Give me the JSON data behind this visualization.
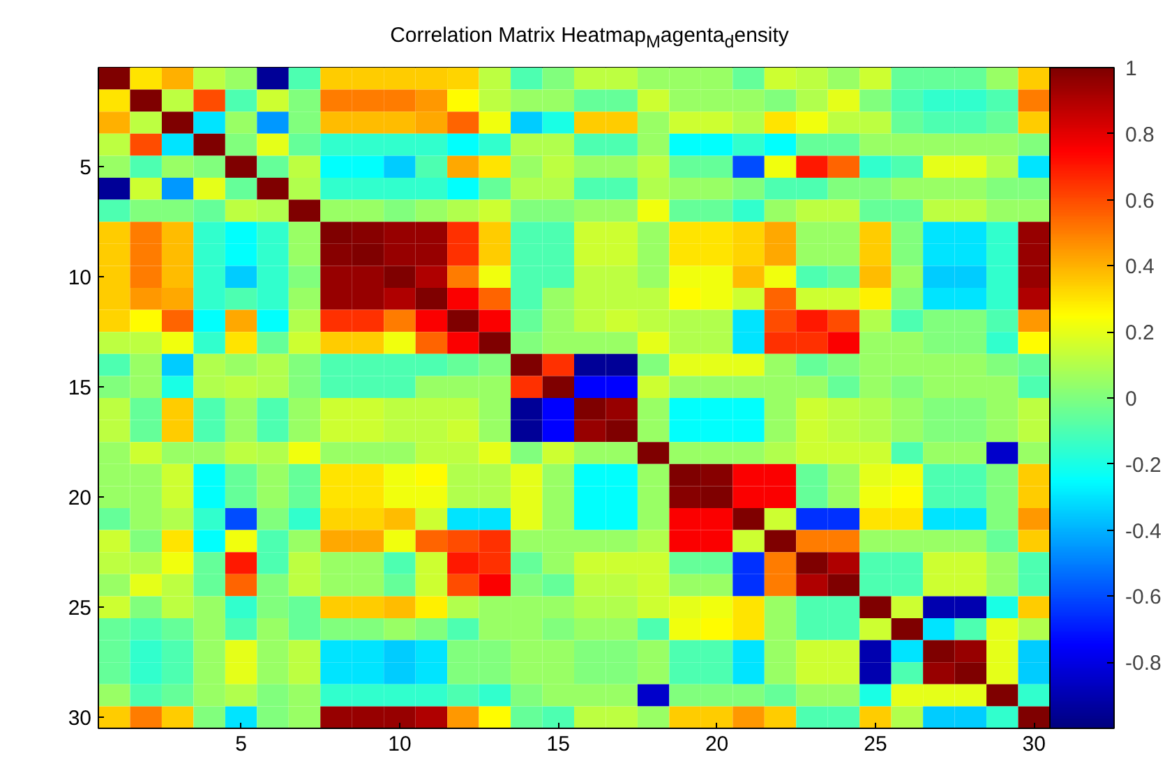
{
  "chart_data": {
    "type": "heatmap",
    "title": "Correlation Matrix Heatmap$_{M}$agenta$_{d}$ensity",
    "categories": [
      null,
      null,
      null,
      null,
      "5",
      null,
      null,
      null,
      null,
      "10",
      null,
      null,
      null,
      null,
      "15",
      null,
      null,
      null,
      null,
      "20",
      null,
      null,
      null,
      null,
      "25",
      null,
      null,
      null,
      null,
      "30"
    ],
    "y_categories": [
      null,
      null,
      null,
      null,
      "5",
      null,
      null,
      null,
      null,
      "10",
      null,
      null,
      null,
      null,
      "15",
      null,
      null,
      null,
      null,
      "20",
      null,
      null,
      null,
      null,
      "25",
      null,
      null,
      null,
      null,
      "30"
    ],
    "clim": [
      -1,
      1
    ],
    "cticks": [
      -0.8,
      -0.6,
      -0.4,
      -0.2,
      0,
      0.2,
      0.4,
      0.6,
      0.8,
      1
    ],
    "cells": [
      [
        1,
        0.3,
        0.4,
        0.12,
        0.05,
        -0.95,
        -0.1,
        0.35,
        0.35,
        0.35,
        0.35,
        0.33,
        0.12,
        -0.1,
        0.0,
        0.12,
        0.12,
        0.05,
        0.05,
        0.05,
        -0.05,
        0.15,
        0.12,
        0.05,
        0.15,
        -0.05,
        -0.05,
        -0.05,
        0.05,
        0.35
      ],
      [
        0.3,
        1,
        0.12,
        0.6,
        -0.1,
        0.15,
        0.0,
        0.5,
        0.5,
        0.5,
        0.45,
        0.25,
        0.12,
        0.05,
        0.05,
        -0.05,
        -0.05,
        0.15,
        0.05,
        0.05,
        0.05,
        0.0,
        0.1,
        0.2,
        0.0,
        -0.1,
        -0.15,
        -0.15,
        -0.1,
        0.5
      ],
      [
        0.4,
        0.12,
        1,
        -0.3,
        0.05,
        -0.45,
        0.0,
        0.38,
        0.38,
        0.38,
        0.42,
        0.55,
        0.22,
        -0.35,
        -0.2,
        0.35,
        0.35,
        0.05,
        0.15,
        0.15,
        0.1,
        0.3,
        0.22,
        0.12,
        0.12,
        -0.05,
        -0.1,
        -0.1,
        -0.05,
        0.35
      ],
      [
        0.12,
        0.6,
        -0.3,
        1,
        0.0,
        0.2,
        -0.05,
        -0.15,
        -0.15,
        -0.15,
        -0.15,
        -0.25,
        -0.15,
        0.1,
        0.1,
        -0.1,
        -0.1,
        0.05,
        -0.25,
        -0.25,
        -0.15,
        -0.25,
        -0.05,
        -0.05,
        0.05,
        0.05,
        0.05,
        0.05,
        0.05,
        0.0
      ],
      [
        0.05,
        -0.1,
        0.05,
        0.0,
        1,
        -0.05,
        0.12,
        -0.25,
        -0.25,
        -0.35,
        -0.1,
        0.42,
        0.3,
        0.05,
        0.12,
        0.05,
        0.05,
        0.12,
        -0.05,
        -0.05,
        -0.6,
        0.22,
        0.7,
        0.55,
        -0.15,
        -0.1,
        0.2,
        0.2,
        0.1,
        -0.3
      ],
      [
        -0.95,
        0.15,
        -0.45,
        0.2,
        -0.05,
        1,
        0.1,
        -0.15,
        -0.15,
        -0.15,
        -0.15,
        -0.25,
        -0.05,
        0.1,
        0.1,
        -0.1,
        -0.1,
        0.1,
        0.05,
        0.05,
        0.0,
        -0.1,
        -0.1,
        0.0,
        0.0,
        0.05,
        0.05,
        0.05,
        0.0,
        0.0
      ],
      [
        -0.1,
        0.0,
        0.0,
        -0.05,
        0.12,
        0.1,
        1,
        0.05,
        0.05,
        0.0,
        0.05,
        0.1,
        0.15,
        0.0,
        0.0,
        0.05,
        0.05,
        0.22,
        -0.05,
        -0.05,
        -0.15,
        0.05,
        0.12,
        0.12,
        -0.05,
        -0.05,
        0.12,
        0.12,
        0.05,
        0.05
      ],
      [
        0.35,
        0.5,
        0.38,
        -0.15,
        -0.25,
        -0.15,
        0.05,
        1,
        0.98,
        0.95,
        0.95,
        0.65,
        0.35,
        -0.1,
        -0.1,
        0.15,
        0.15,
        0.05,
        0.3,
        0.3,
        0.33,
        0.42,
        0.05,
        0.05,
        0.35,
        0.0,
        -0.3,
        -0.3,
        -0.15,
        0.95
      ],
      [
        0.35,
        0.5,
        0.38,
        -0.15,
        -0.25,
        -0.15,
        0.05,
        0.98,
        1,
        0.95,
        0.95,
        0.65,
        0.35,
        -0.1,
        -0.1,
        0.15,
        0.15,
        0.05,
        0.3,
        0.3,
        0.33,
        0.42,
        0.05,
        0.05,
        0.35,
        0.0,
        -0.3,
        -0.3,
        -0.15,
        0.95
      ],
      [
        0.35,
        0.5,
        0.38,
        -0.15,
        -0.35,
        -0.15,
        0.0,
        0.95,
        0.95,
        1,
        0.9,
        0.5,
        0.22,
        -0.1,
        -0.1,
        0.12,
        0.12,
        0.05,
        0.22,
        0.22,
        0.38,
        0.22,
        -0.1,
        -0.05,
        0.38,
        0.05,
        -0.35,
        -0.35,
        -0.15,
        0.95
      ],
      [
        0.35,
        0.45,
        0.42,
        -0.15,
        -0.1,
        -0.15,
        0.05,
        0.95,
        0.95,
        0.9,
        1,
        0.75,
        0.55,
        -0.1,
        0.05,
        0.12,
        0.12,
        0.12,
        0.25,
        0.22,
        0.15,
        0.55,
        0.15,
        0.15,
        0.28,
        0.0,
        -0.3,
        -0.3,
        -0.15,
        0.9
      ],
      [
        0.33,
        0.25,
        0.55,
        -0.25,
        0.42,
        -0.25,
        0.1,
        0.65,
        0.65,
        0.5,
        0.75,
        1,
        0.75,
        -0.05,
        0.05,
        0.12,
        0.15,
        0.12,
        0.1,
        0.1,
        -0.3,
        0.6,
        0.7,
        0.6,
        0.1,
        -0.1,
        0.0,
        0.0,
        -0.1,
        0.45
      ],
      [
        0.12,
        0.12,
        0.22,
        -0.15,
        0.3,
        -0.05,
        0.15,
        0.35,
        0.35,
        0.22,
        0.55,
        0.75,
        1,
        0.0,
        0.05,
        0.05,
        0.05,
        0.2,
        0.1,
        0.1,
        -0.3,
        0.65,
        0.65,
        0.75,
        0.05,
        0.05,
        0.0,
        0.0,
        -0.15,
        0.25
      ],
      [
        -0.1,
        0.05,
        -0.35,
        0.1,
        0.05,
        0.1,
        0.0,
        -0.1,
        -0.1,
        -0.1,
        -0.1,
        -0.05,
        0.0,
        1,
        0.65,
        -0.95,
        -0.95,
        0.0,
        0.2,
        0.2,
        0.2,
        0.05,
        -0.05,
        0.0,
        0.05,
        0.05,
        0.05,
        0.05,
        0.0,
        -0.05
      ],
      [
        0.0,
        0.05,
        -0.2,
        0.1,
        0.12,
        0.1,
        0.0,
        -0.1,
        -0.1,
        -0.1,
        0.05,
        0.05,
        0.05,
        0.65,
        1,
        -0.75,
        -0.75,
        0.15,
        0.05,
        0.05,
        0.05,
        0.05,
        0.05,
        -0.05,
        0.05,
        0.0,
        0.05,
        0.05,
        0.05,
        -0.1
      ],
      [
        0.12,
        -0.05,
        0.35,
        -0.1,
        0.05,
        -0.1,
        0.05,
        0.15,
        0.15,
        0.12,
        0.12,
        0.12,
        0.05,
        -0.95,
        -0.75,
        1,
        0.95,
        0.05,
        -0.25,
        -0.25,
        -0.25,
        0.05,
        0.15,
        0.12,
        0.1,
        0.05,
        0.0,
        0.0,
        0.05,
        0.12
      ],
      [
        0.12,
        -0.05,
        0.35,
        -0.1,
        0.05,
        -0.1,
        0.05,
        0.15,
        0.15,
        0.12,
        0.12,
        0.15,
        0.05,
        -0.95,
        -0.75,
        0.95,
        1,
        0.05,
        -0.25,
        -0.25,
        -0.25,
        0.05,
        0.15,
        0.12,
        0.1,
        0.05,
        0.0,
        0.0,
        0.05,
        0.12
      ],
      [
        0.05,
        0.15,
        0.05,
        0.05,
        0.12,
        0.1,
        0.22,
        0.05,
        0.05,
        0.05,
        0.12,
        0.12,
        0.2,
        0.0,
        0.15,
        0.05,
        0.05,
        1,
        0.05,
        0.05,
        0.05,
        0.1,
        0.15,
        0.15,
        0.15,
        -0.1,
        0.05,
        0.05,
        -0.85,
        0.05
      ],
      [
        0.05,
        0.05,
        0.15,
        -0.25,
        -0.05,
        0.05,
        -0.05,
        0.3,
        0.3,
        0.22,
        0.25,
        0.1,
        0.1,
        0.2,
        0.05,
        -0.25,
        -0.25,
        0.05,
        1,
        0.98,
        0.75,
        0.75,
        -0.05,
        0.05,
        0.2,
        0.22,
        -0.1,
        -0.1,
        0.0,
        0.35
      ],
      [
        0.05,
        0.05,
        0.15,
        -0.25,
        -0.05,
        0.05,
        -0.05,
        0.3,
        0.3,
        0.22,
        0.22,
        0.1,
        0.1,
        0.2,
        0.05,
        -0.25,
        -0.25,
        0.05,
        0.98,
        1,
        0.75,
        0.75,
        -0.05,
        0.05,
        0.22,
        0.25,
        -0.1,
        -0.1,
        0.0,
        0.35
      ],
      [
        -0.05,
        0.05,
        0.1,
        -0.15,
        -0.6,
        0.0,
        -0.15,
        0.33,
        0.33,
        0.38,
        0.15,
        -0.3,
        -0.3,
        0.2,
        0.05,
        -0.25,
        -0.25,
        0.05,
        0.75,
        0.75,
        1,
        0.15,
        -0.65,
        -0.65,
        0.3,
        0.3,
        -0.3,
        -0.3,
        0.0,
        0.45
      ],
      [
        0.15,
        0.0,
        0.3,
        -0.25,
        0.22,
        -0.1,
        0.05,
        0.42,
        0.42,
        0.22,
        0.55,
        0.6,
        0.65,
        0.05,
        0.05,
        0.05,
        0.05,
        0.1,
        0.75,
        0.75,
        0.15,
        1,
        0.5,
        0.5,
        0.05,
        0.05,
        0.05,
        0.05,
        -0.05,
        0.35
      ],
      [
        0.12,
        0.1,
        0.22,
        -0.05,
        0.7,
        -0.1,
        0.12,
        0.05,
        0.05,
        -0.1,
        0.15,
        0.7,
        0.65,
        -0.05,
        0.05,
        0.15,
        0.15,
        0.15,
        -0.05,
        -0.05,
        -0.65,
        0.5,
        1,
        0.9,
        -0.1,
        -0.1,
        0.15,
        0.15,
        0.05,
        -0.1
      ],
      [
        0.05,
        0.2,
        0.12,
        -0.05,
        0.55,
        0.0,
        0.12,
        0.05,
        0.05,
        -0.05,
        0.15,
        0.6,
        0.75,
        0.0,
        -0.05,
        0.12,
        0.12,
        0.15,
        0.05,
        0.05,
        -0.65,
        0.5,
        0.9,
        1,
        -0.1,
        -0.1,
        0.15,
        0.15,
        0.05,
        -0.1
      ],
      [
        0.15,
        0.0,
        0.12,
        0.05,
        -0.15,
        0.0,
        -0.05,
        0.35,
        0.35,
        0.38,
        0.28,
        0.1,
        0.05,
        0.05,
        0.05,
        0.1,
        0.1,
        0.15,
        0.2,
        0.22,
        0.3,
        0.05,
        -0.1,
        -0.1,
        1,
        0.15,
        -0.9,
        -0.9,
        -0.2,
        0.35
      ],
      [
        -0.05,
        -0.1,
        -0.05,
        0.05,
        -0.1,
        0.05,
        -0.05,
        0.0,
        0.0,
        0.05,
        0.0,
        -0.1,
        0.05,
        0.05,
        0.0,
        0.05,
        0.05,
        -0.1,
        0.22,
        0.25,
        0.3,
        0.05,
        -0.1,
        -0.1,
        0.15,
        1,
        -0.3,
        -0.1,
        0.2,
        0.1
      ],
      [
        -0.05,
        -0.15,
        -0.1,
        0.05,
        0.2,
        0.05,
        0.12,
        -0.3,
        -0.3,
        -0.35,
        -0.3,
        0.0,
        0.0,
        0.05,
        0.05,
        0.0,
        0.0,
        0.05,
        -0.1,
        -0.1,
        -0.3,
        0.05,
        0.15,
        0.15,
        -0.9,
        -0.3,
        1,
        0.95,
        0.2,
        -0.35
      ],
      [
        -0.05,
        -0.15,
        -0.1,
        0.05,
        0.2,
        0.05,
        0.12,
        -0.3,
        -0.3,
        -0.35,
        -0.3,
        0.0,
        0.0,
        0.05,
        0.05,
        0.0,
        0.0,
        0.05,
        -0.1,
        -0.1,
        -0.3,
        0.05,
        0.15,
        0.15,
        -0.9,
        -0.1,
        0.95,
        1,
        0.2,
        -0.35
      ],
      [
        0.05,
        -0.1,
        -0.05,
        0.05,
        0.1,
        0.0,
        0.05,
        -0.15,
        -0.15,
        -0.15,
        -0.15,
        -0.1,
        -0.15,
        0.0,
        0.05,
        0.05,
        0.05,
        -0.85,
        0.0,
        0.0,
        0.0,
        -0.05,
        0.05,
        0.05,
        -0.2,
        0.2,
        0.2,
        0.2,
        1,
        -0.15
      ],
      [
        0.35,
        0.5,
        0.35,
        0.0,
        -0.3,
        0.0,
        0.05,
        0.95,
        0.95,
        0.95,
        0.9,
        0.45,
        0.25,
        -0.05,
        -0.1,
        0.12,
        0.12,
        0.05,
        0.35,
        0.35,
        0.45,
        0.35,
        -0.1,
        -0.1,
        0.35,
        0.1,
        -0.35,
        -0.35,
        -0.15,
        1
      ]
    ]
  }
}
